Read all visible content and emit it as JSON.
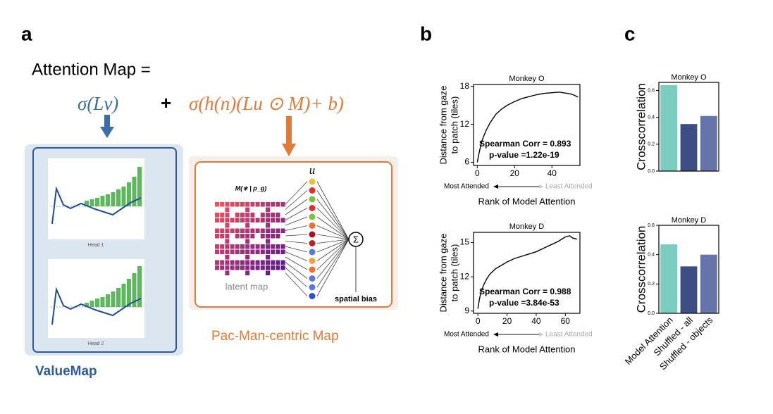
{
  "panel_labels": [
    "a",
    "b",
    "c"
  ],
  "diagram": {
    "title": "Attention Map =",
    "term1": "σ(Lv)",
    "plus": "+",
    "term2": "σ(h(n)(Lu ⊙ M)+ b)",
    "head_labels": [
      "Head 1",
      "Head 2"
    ],
    "value_map_label": "ValueMap",
    "pacman_label": "Pac-Man-centric Map",
    "u_label": "u",
    "m_label": "M(∗ | p_g)",
    "latent_label": "latent map",
    "sum": "Σ",
    "bias_label": "spatial bias"
  },
  "chart_data": [
    {
      "type": "line",
      "title": "Monkey O",
      "ylabel": [
        "Distance from gaze",
        "to patch (tiles)"
      ],
      "xlabel": "Rank of Model Attention",
      "arrow_labels": [
        "Most Attended",
        "Least Attended"
      ],
      "annotations": [
        "Spearman Corr = 0.893",
        "p-value =1.22e-19"
      ],
      "x": [
        0,
        1,
        2,
        3,
        5,
        7,
        10,
        13,
        16,
        20,
        24,
        28,
        32,
        36,
        40,
        44,
        48,
        50,
        52,
        54
      ],
      "values": [
        6.0,
        7.5,
        8.8,
        9.8,
        11.2,
        12.3,
        13.6,
        14.4,
        15.0,
        15.6,
        16.1,
        16.4,
        16.7,
        16.9,
        17.0,
        17.1,
        16.9,
        16.8,
        16.6,
        16.3
      ],
      "color": "#000000",
      "xlim": [
        -2,
        55
      ],
      "xticks": [
        0,
        20,
        40
      ],
      "ylim": [
        5.5,
        18.3
      ],
      "yticks": [
        6,
        12,
        18
      ]
    },
    {
      "type": "line",
      "title": "Monkey D",
      "ylabel": [
        "Distance from gaze",
        "to patch (tiles)"
      ],
      "xlabel": "Rank of Model Attention",
      "arrow_labels": [
        "Most Attended",
        "Least Attended"
      ],
      "annotations": [
        "Spearman Corr = 0.988",
        "p-value =3.84e-53"
      ],
      "x": [
        0,
        1,
        2,
        4,
        6,
        8,
        12,
        16,
        20,
        25,
        30,
        35,
        40,
        45,
        50,
        55,
        60,
        63,
        65,
        68
      ],
      "values": [
        9.2,
        10.0,
        10.6,
        11.3,
        11.8,
        12.2,
        12.7,
        13.0,
        13.3,
        13.6,
        13.8,
        14.0,
        14.2,
        14.5,
        14.8,
        15.1,
        15.5,
        15.6,
        15.4,
        15.3
      ],
      "color": "#000000",
      "xlim": [
        -3,
        70
      ],
      "xticks": [
        0,
        20,
        40,
        60
      ],
      "ylim": [
        8.8,
        15.9
      ],
      "yticks": [
        9,
        12,
        15
      ]
    },
    {
      "type": "bar",
      "title": "Monkey O",
      "ylabel": "Crosscorrelation",
      "values": [
        0.64,
        0.35,
        0.41
      ],
      "colors": [
        "#7ccdc0",
        "#3d4e84",
        "#6674aa"
      ],
      "ylim": [
        0,
        0.66
      ],
      "yticks": [
        {
          "value": 0,
          "label": "0.0"
        },
        0.2,
        0.4,
        0.6
      ]
    },
    {
      "type": "bar",
      "title": "Monkey D",
      "ylabel": "Crosscorrelation",
      "categories": [
        "Model Attention",
        "Shuffled - all",
        "Shuffled - objects"
      ],
      "values": [
        0.47,
        0.32,
        0.4
      ],
      "colors": [
        "#7ccdc0",
        "#3d4e84",
        "#6674aa"
      ],
      "ylim": [
        0,
        0.6
      ],
      "yticks": [
        {
          "value": 0,
          "label": "0.0"
        },
        0.2,
        0.4,
        0.6
      ]
    }
  ]
}
